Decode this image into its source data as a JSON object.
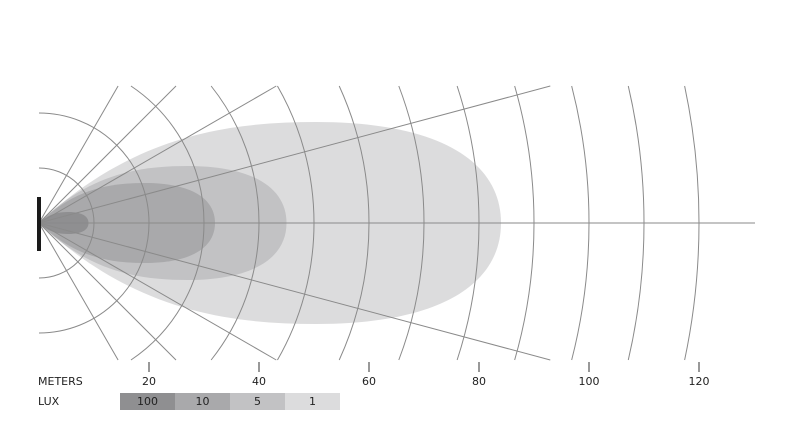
{
  "axis": {
    "label": "METERS",
    "ticks": [
      20,
      40,
      60,
      80,
      100,
      120
    ],
    "max_meters": 120,
    "ring_step": 10
  },
  "radial_angles_deg": [
    0,
    15,
    30,
    45,
    60
  ],
  "legend": {
    "label": "LUX",
    "items": [
      {
        "value": "100",
        "color": "#8f8f91",
        "reach_m": 9
      },
      {
        "value": "10",
        "color": "#a9a9ab",
        "reach_m": 32
      },
      {
        "value": "5",
        "color": "#c2c2c4",
        "reach_m": 45
      },
      {
        "value": "1",
        "color": "#dcdcdd",
        "reach_m": 84
      }
    ]
  },
  "colors": {
    "grid": "#8a8a8a",
    "emitter": "#1a1a1a"
  }
}
